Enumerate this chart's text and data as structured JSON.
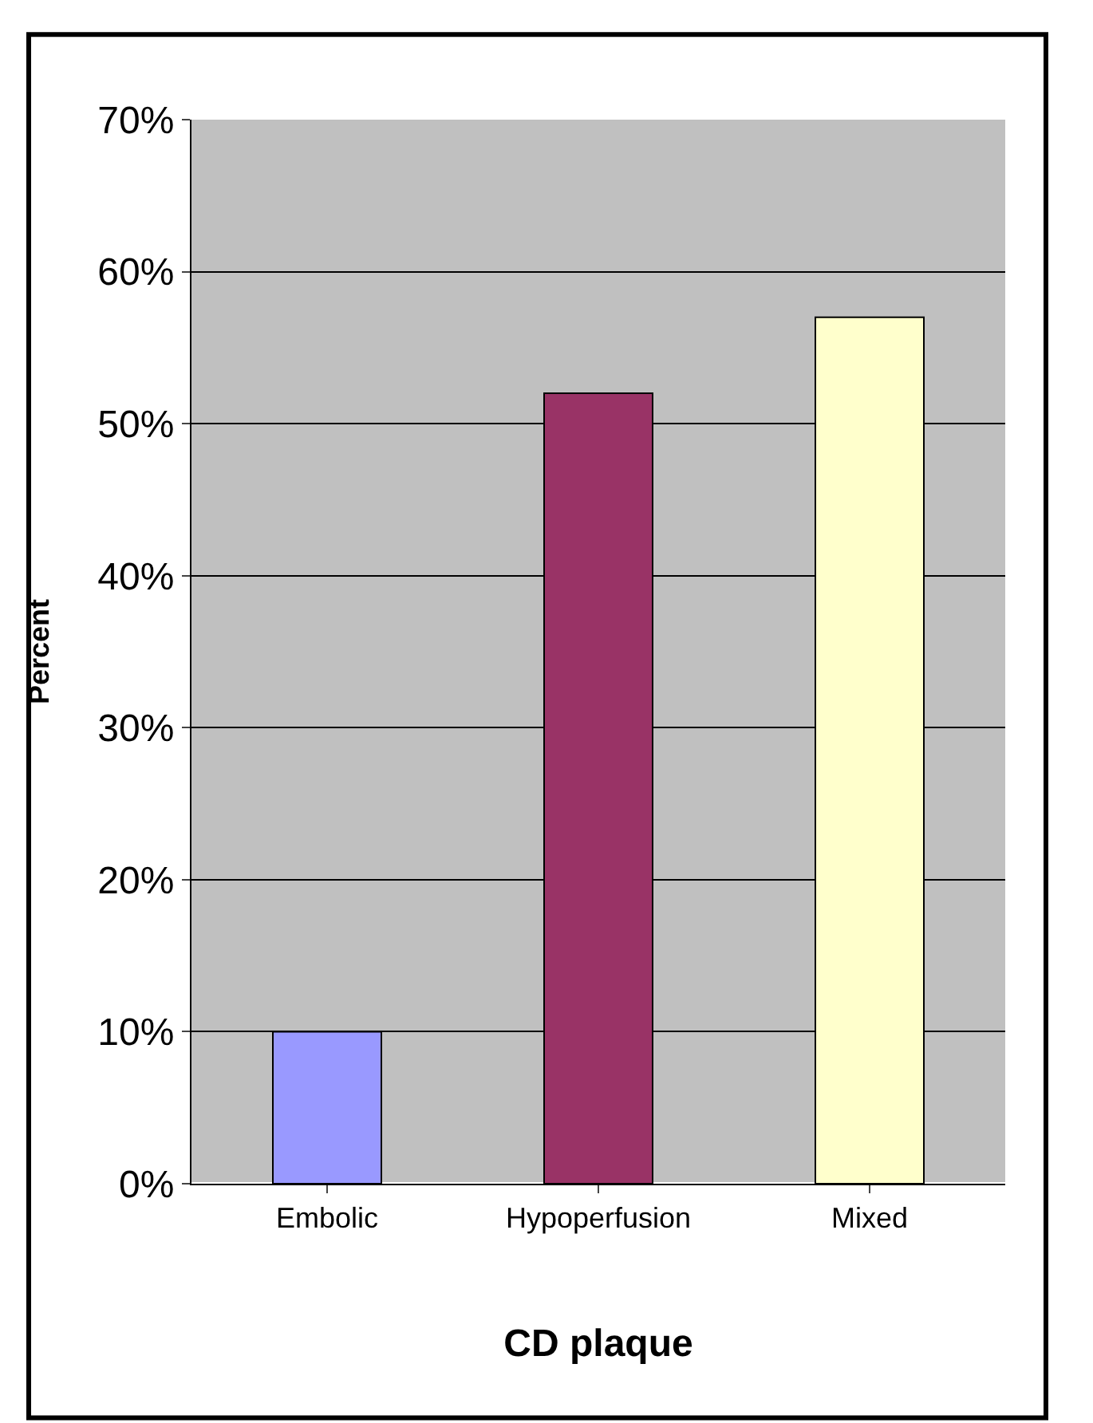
{
  "chart_data": {
    "type": "bar",
    "xlabel": "CD plaque",
    "ylabel": "Percent",
    "categories": [
      "Embolic",
      "Hypoperfusion",
      "Mixed"
    ],
    "values": [
      10,
      52,
      57
    ],
    "colors": [
      "#9999ff",
      "#993366",
      "#ffffcc"
    ],
    "ylim": [
      0,
      70
    ],
    "yticks": [
      {
        "value": 0,
        "label": "0%"
      },
      {
        "value": 10,
        "label": "10%"
      },
      {
        "value": 20,
        "label": "20%"
      },
      {
        "value": 30,
        "label": "30%"
      },
      {
        "value": 40,
        "label": "40%"
      },
      {
        "value": 50,
        "label": "50%"
      },
      {
        "value": 60,
        "label": "60%"
      },
      {
        "value": 70,
        "label": "70%"
      }
    ],
    "grid": "y"
  }
}
